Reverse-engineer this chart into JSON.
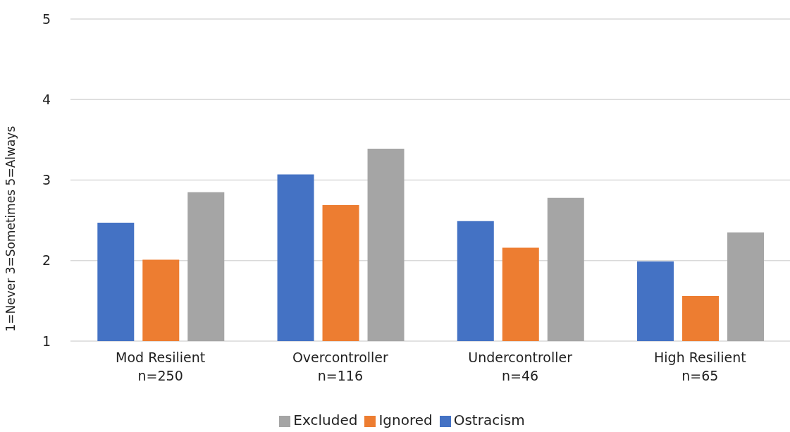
{
  "chart_data": {
    "type": "bar",
    "ylabel": "1=Never 3=Sometimes 5=Always",
    "categories": [
      "Mod Resilient\nn=250",
      "Overcontroller\nn=116",
      "Undercontroller\nn=46",
      "High Resilient\nn=65"
    ],
    "series": [
      {
        "name": "Ostracism",
        "color": "#4472c4",
        "values": [
          2.47,
          3.07,
          2.49,
          1.99
        ]
      },
      {
        "name": "Ignored",
        "color": "#ed7d31",
        "values": [
          2.01,
          2.69,
          2.16,
          1.56
        ]
      },
      {
        "name": "Excluded",
        "color": "#a5a5a5",
        "values": [
          2.85,
          3.39,
          2.78,
          2.35
        ]
      }
    ],
    "ylim": [
      1,
      5
    ],
    "yticks": [
      1,
      2,
      3,
      4,
      5
    ],
    "grid": "y",
    "legend": "bottom"
  }
}
